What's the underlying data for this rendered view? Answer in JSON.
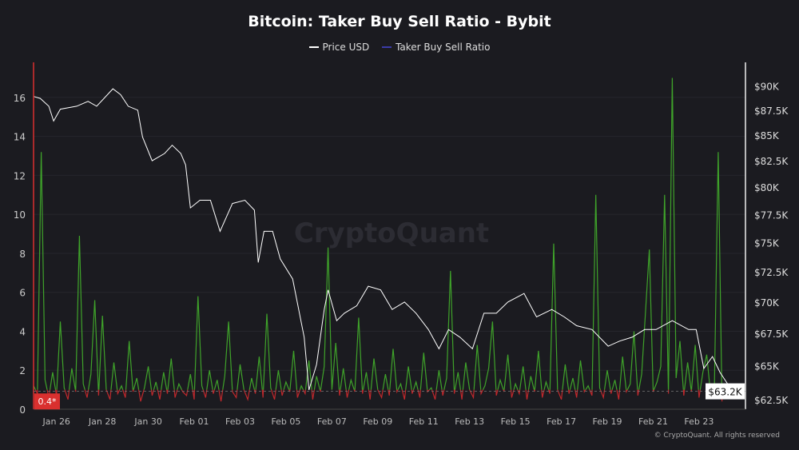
{
  "chart_data": {
    "type": "line",
    "title": "Bitcoin: Taker Buy Sell Ratio - Bybit",
    "legend_placement": "top-center",
    "grid": true,
    "watermark": "CryptoQuant",
    "credit": "© CryptoQuant. All rights reserved",
    "colors": {
      "price": "#ffffff",
      "ratio_legend": "#3b3ba8",
      "ratio_above": "#3fa32a",
      "ratio_below": "#c0282c",
      "left_axis": "#d9302f",
      "background": "#1b1b20"
    },
    "x_ticks": [
      "Jan 26",
      "Jan 28",
      "Jan 30",
      "Feb 01",
      "Feb 03",
      "Feb 05",
      "Feb 07",
      "Feb 09",
      "Feb 11",
      "Feb 13",
      "Feb 15",
      "Feb 17",
      "Feb 19",
      "Feb 21",
      "Feb 23"
    ],
    "x_range": [
      "Jan 25 00:00",
      "Feb 24 12:00"
    ],
    "left_axis": {
      "ticks": [
        "0",
        "2",
        "4",
        "6",
        "8",
        "10",
        "12",
        "14",
        "16"
      ],
      "ylim": [
        0,
        17.8
      ]
    },
    "right_axis": {
      "scale": "log",
      "ticks": [
        "$90K",
        "$87.5K",
        "$85K",
        "$82.5K",
        "$80K",
        "$77.5K",
        "$75K",
        "$72.5K",
        "$70K",
        "$67.5K",
        "$65K",
        "$62.5K"
      ],
      "tick_values": [
        90,
        87.5,
        85,
        82.5,
        80,
        77.5,
        75,
        72.5,
        70,
        67.5,
        65,
        62.5
      ],
      "ylim_k": [
        61.8,
        92.5
      ]
    },
    "current_labels": {
      "ratio": "0.4*",
      "price": "$63.2K"
    },
    "series": [
      {
        "name": "Price USD",
        "axis": "right",
        "unit": "thousand USD",
        "points": [
          [
            "Jan 25 00:00",
            88.9
          ],
          [
            "Jan 25 07:00",
            88.7
          ],
          [
            "Jan 25 16:00",
            87.9
          ],
          [
            "Jan 25 21:00",
            86.4
          ],
          [
            "Jan 26 04:00",
            87.6
          ],
          [
            "Jan 26 21:00",
            87.9
          ],
          [
            "Jan 27 09:00",
            88.4
          ],
          [
            "Jan 27 18:00",
            87.9
          ],
          [
            "Jan 28 11:00",
            89.7
          ],
          [
            "Jan 28 19:00",
            89.1
          ],
          [
            "Jan 29 03:00",
            87.9
          ],
          [
            "Jan 29 13:00",
            87.5
          ],
          [
            "Jan 29 18:00",
            84.8
          ],
          [
            "Jan 30 04:00",
            82.5
          ],
          [
            "Jan 30 17:00",
            83.2
          ],
          [
            "Jan 31 01:00",
            84.0
          ],
          [
            "Jan 31 10:00",
            83.2
          ],
          [
            "Jan 31 15:00",
            82.1
          ],
          [
            "Jan 31 20:00",
            78.1
          ],
          [
            "Feb 01 06:00",
            78.8
          ],
          [
            "Feb 01 17:00",
            78.8
          ],
          [
            "Feb 02 03:00",
            76.0
          ],
          [
            "Feb 02 16:00",
            78.5
          ],
          [
            "Feb 03 05:00",
            78.8
          ],
          [
            "Feb 03 15:00",
            77.9
          ],
          [
            "Feb 03 19:00",
            73.3
          ],
          [
            "Feb 04 01:00",
            76.0
          ],
          [
            "Feb 04 10:00",
            76.0
          ],
          [
            "Feb 04 18:00",
            73.6
          ],
          [
            "Feb 05 07:00",
            71.9
          ],
          [
            "Feb 05 19:00",
            67.2
          ],
          [
            "Feb 06 00:00",
            63.2
          ],
          [
            "Feb 06 08:00",
            65.1
          ],
          [
            "Feb 06 16:00",
            69.4
          ],
          [
            "Feb 06 20:00",
            71.0
          ],
          [
            "Feb 07 05:00",
            68.5
          ],
          [
            "Feb 07 13:00",
            69.1
          ],
          [
            "Feb 08 02:00",
            69.7
          ],
          [
            "Feb 08 14:00",
            71.3
          ],
          [
            "Feb 09 03:00",
            71.0
          ],
          [
            "Feb 09 15:00",
            69.4
          ],
          [
            "Feb 10 04:00",
            70.0
          ],
          [
            "Feb 10 16:00",
            69.1
          ],
          [
            "Feb 11 05:00",
            67.8
          ],
          [
            "Feb 11 16:00",
            66.3
          ],
          [
            "Feb 12 02:00",
            67.8
          ],
          [
            "Feb 12 14:00",
            67.2
          ],
          [
            "Feb 13 03:00",
            66.3
          ],
          [
            "Feb 13 15:00",
            69.1
          ],
          [
            "Feb 14 04:00",
            69.1
          ],
          [
            "Feb 14 16:00",
            70.0
          ],
          [
            "Feb 15 09:00",
            70.7
          ],
          [
            "Feb 15 22:00",
            68.8
          ],
          [
            "Feb 16 14:00",
            69.4
          ],
          [
            "Feb 17 03:00",
            68.8
          ],
          [
            "Feb 17 16:00",
            68.1
          ],
          [
            "Feb 18 08:00",
            67.8
          ],
          [
            "Feb 19 01:00",
            66.5
          ],
          [
            "Feb 19 13:00",
            66.9
          ],
          [
            "Feb 20 02:00",
            67.2
          ],
          [
            "Feb 20 15:00",
            67.8
          ],
          [
            "Feb 21 03:00",
            67.8
          ],
          [
            "Feb 21 20:00",
            68.5
          ],
          [
            "Feb 22 13:00",
            67.8
          ],
          [
            "Feb 22 21:00",
            67.8
          ],
          [
            "Feb 23 05:00",
            64.8
          ],
          [
            "Feb 23 14:00",
            65.7
          ],
          [
            "Feb 23 22:00",
            64.5
          ],
          [
            "Feb 24 11:00",
            63.1
          ]
        ]
      },
      {
        "name": "Taker Buy Sell Ratio",
        "axis": "left",
        "baseline": 1,
        "start": "Jan 25 00:00",
        "step_hours": 4,
        "values": [
          1.2,
          0.8,
          13.2,
          1.5,
          0.6,
          1.9,
          0.7,
          4.5,
          1.1,
          0.5,
          2.1,
          0.9,
          8.9,
          1.3,
          0.6,
          1.8,
          5.6,
          0.7,
          4.8,
          1.0,
          0.5,
          2.4,
          0.8,
          1.2,
          0.6,
          3.5,
          0.9,
          1.6,
          0.4,
          1.1,
          2.2,
          0.7,
          1.4,
          0.5,
          1.9,
          0.8,
          2.6,
          0.6,
          1.3,
          0.9,
          0.7,
          1.8,
          0.5,
          5.8,
          1.2,
          0.6,
          2.0,
          0.8,
          1.5,
          0.4,
          1.7,
          4.5,
          0.9,
          0.6,
          2.3,
          1.0,
          0.5,
          1.6,
          0.8,
          2.7,
          0.6,
          4.9,
          1.1,
          0.5,
          2.0,
          0.7,
          1.4,
          0.9,
          3.0,
          0.6,
          1.2,
          0.8,
          2.5,
          0.5,
          1.7,
          0.9,
          2.2,
          8.3,
          1.0,
          3.4,
          0.7,
          2.1,
          0.6,
          1.5,
          0.9,
          4.7,
          0.8,
          1.9,
          0.5,
          2.6,
          1.0,
          0.6,
          1.8,
          0.7,
          3.1,
          0.9,
          1.3,
          0.5,
          2.2,
          0.8,
          1.4,
          0.6,
          2.9,
          0.9,
          1.1,
          0.5,
          2.0,
          0.7,
          1.6,
          7.1,
          0.8,
          1.9,
          0.5,
          2.4,
          1.0,
          0.6,
          3.3,
          0.8,
          1.2,
          2.1,
          4.5,
          0.7,
          1.5,
          0.9,
          2.8,
          0.6,
          1.3,
          0.8,
          2.2,
          0.5,
          1.7,
          0.9,
          3.0,
          0.6,
          1.4,
          0.8,
          8.5,
          1.0,
          0.5,
          2.3,
          0.8,
          1.6,
          0.6,
          2.5,
          0.9,
          1.2,
          0.7,
          11.0,
          1.1,
          0.6,
          2.0,
          0.8,
          1.5,
          0.5,
          2.7,
          0.9,
          1.3,
          4.0,
          0.7,
          1.8,
          5.0,
          8.2,
          0.9,
          1.4,
          2.2,
          11.0,
          0.8,
          17.0,
          1.6,
          3.5,
          0.7,
          2.4,
          0.9,
          3.3,
          0.6,
          1.9,
          2.8,
          0.8,
          1.1,
          13.2,
          0.4
        ]
      }
    ]
  }
}
